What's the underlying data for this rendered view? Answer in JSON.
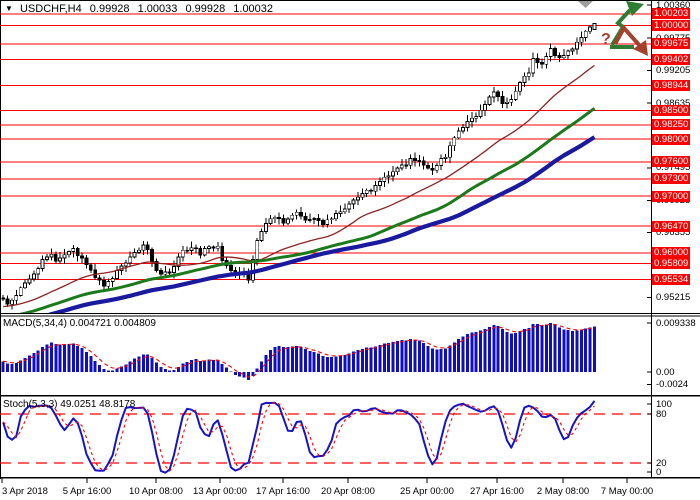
{
  "header": {
    "dropdown_icon": "▼",
    "symbol": "USDCHF,H4",
    "open": "0.99928",
    "high": "1.00033",
    "low": "0.99928",
    "close": "1.00032"
  },
  "colors": {
    "background": "#FFFFFF",
    "border": "#000000",
    "axis_text": "#000000",
    "level_line": "#FF0000",
    "level_label_bg": "#FF0000",
    "level_label_text": "#FFFFFF",
    "candle_up_fill": "#FFFFFF",
    "candle_down_fill": "#000000",
    "candle_outline": "#000000",
    "ma_fast": "#8E2323",
    "ma_mid": "#1C7A1C",
    "ma_slow": "#1A1A9E",
    "macd_bar": "#0F0FC0",
    "macd_signal": "#FF0000",
    "stoch_k": "#1414C8",
    "stoch_d": "#FF0000",
    "stoch_level": "#FF0000",
    "arrow_up": "#2E7D32",
    "arrow_down": "#A5402D",
    "marker_gray": "#9E9E9E"
  },
  "chart_data": [
    {
      "type": "candlestick",
      "symbol": "USDCHF",
      "timeframe": "H4",
      "title": "USDCHF,H4",
      "last_candle": {
        "open": 0.99928,
        "high": 1.00033,
        "low": 0.99928,
        "close": 1.00032
      },
      "y_range": [
        0.9496,
        1.00395
      ],
      "scale_ticks": [
        "1.00360",
        "0.99775",
        "0.99205",
        "0.98635",
        "0.97495",
        "0.96925",
        "0.96355",
        "0.95215"
      ],
      "level_lines": [
        "1.00203",
        "1.00000",
        "0.99675",
        "0.99402",
        "0.98944",
        "0.98500",
        "0.98250",
        "0.98000",
        "0.97600",
        "0.97300",
        "0.97000",
        "0.96470",
        "0.96000",
        "0.95809",
        "0.95534"
      ],
      "x_ticks": [
        {
          "label": "3 Apr 2018",
          "px": 2,
          "align": "left"
        },
        {
          "label": "5 Apr 16:00",
          "px": 87
        },
        {
          "label": "10 Apr 08:00",
          "px": 156
        },
        {
          "label": "13 Apr 00:00",
          "px": 220
        },
        {
          "label": "17 Apr 16:00",
          "px": 283
        },
        {
          "label": "20 Apr 08:00",
          "px": 348
        },
        {
          "label": "25 Apr 00:00",
          "px": 427
        },
        {
          "label": "27 Apr 16:00",
          "px": 497
        },
        {
          "label": "2 May 08:00",
          "px": 563
        },
        {
          "label": "7 May 00:00",
          "px": 627
        }
      ],
      "moving_averages": [
        {
          "name": "ma-fast",
          "color_key": "ma_fast",
          "period": 25,
          "width": 1.3
        },
        {
          "name": "ma-mid",
          "color_key": "ma_mid",
          "period": 50,
          "width": 3
        },
        {
          "name": "ma-slow",
          "color_key": "ma_slow",
          "period": 70,
          "width": 4.2
        }
      ],
      "candle_count": 136,
      "price_path_anchors": [
        [
          -70,
          0.9428
        ],
        [
          -40,
          0.9462
        ],
        [
          -20,
          0.9494
        ],
        [
          -8,
          0.9512
        ],
        [
          0,
          0.9522
        ],
        [
          1,
          0.9506
        ],
        [
          2,
          0.9516
        ],
        [
          3,
          0.9528
        ],
        [
          5,
          0.9549
        ],
        [
          8,
          0.9572
        ],
        [
          9,
          0.9588
        ],
        [
          11,
          0.9601
        ],
        [
          12,
          0.9586
        ],
        [
          14,
          0.9597
        ],
        [
          16,
          0.9605
        ],
        [
          18,
          0.9589
        ],
        [
          19,
          0.9577
        ],
        [
          21,
          0.9556
        ],
        [
          23,
          0.9541
        ],
        [
          24,
          0.9547
        ],
        [
          26,
          0.9566
        ],
        [
          28,
          0.9585
        ],
        [
          30,
          0.96
        ],
        [
          32,
          0.9612
        ],
        [
          33,
          0.9605
        ],
        [
          35,
          0.9572
        ],
        [
          36,
          0.956
        ],
        [
          38,
          0.9568
        ],
        [
          39,
          0.958
        ],
        [
          41,
          0.9602
        ],
        [
          43,
          0.961
        ],
        [
          45,
          0.96
        ],
        [
          47,
          0.9608
        ],
        [
          49,
          0.9615
        ],
        [
          50,
          0.959
        ],
        [
          52,
          0.957
        ],
        [
          53,
          0.9562
        ],
        [
          55,
          0.9568
        ],
        [
          56,
          0.955
        ],
        [
          57,
          0.959
        ],
        [
          58,
          0.9625
        ],
        [
          60,
          0.965
        ],
        [
          62,
          0.9665
        ],
        [
          64,
          0.9656
        ],
        [
          66,
          0.9663
        ],
        [
          67,
          0.9668
        ],
        [
          69,
          0.9655
        ],
        [
          71,
          0.9662
        ],
        [
          73,
          0.9652
        ],
        [
          75,
          0.9661
        ],
        [
          76,
          0.9671
        ],
        [
          78,
          0.9681
        ],
        [
          80,
          0.9691
        ],
        [
          82,
          0.9701
        ],
        [
          84,
          0.9712
        ],
        [
          86,
          0.9722
        ],
        [
          87,
          0.973
        ],
        [
          89,
          0.974
        ],
        [
          91,
          0.9752
        ],
        [
          93,
          0.9764
        ],
        [
          95,
          0.976
        ],
        [
          97,
          0.9748
        ],
        [
          98,
          0.9742
        ],
        [
          99,
          0.9754
        ],
        [
          101,
          0.9771
        ],
        [
          102,
          0.9789
        ],
        [
          103,
          0.9805
        ],
        [
          105,
          0.9818
        ],
        [
          106,
          0.9829
        ],
        [
          108,
          0.984
        ],
        [
          109,
          0.985
        ],
        [
          110,
          0.9862
        ],
        [
          112,
          0.988
        ],
        [
          113,
          0.9878
        ],
        [
          114,
          0.9861
        ],
        [
          116,
          0.9868
        ],
        [
          117,
          0.9884
        ],
        [
          118,
          0.99
        ],
        [
          120,
          0.9918
        ],
        [
          121,
          0.9938
        ],
        [
          123,
          0.9931
        ],
        [
          124,
          0.9945
        ],
        [
          125,
          0.9957
        ],
        [
          127,
          0.9943
        ],
        [
          129,
          0.9952
        ],
        [
          130,
          0.9962
        ],
        [
          131,
          0.9974
        ],
        [
          133,
          0.9988
        ],
        [
          134,
          1.0
        ],
        [
          135,
          1.0003
        ]
      ],
      "annotations": {
        "question_mark": "?",
        "up_arrow": "bullish-scenario",
        "down_arrow": "bearish-scenario"
      }
    },
    {
      "type": "bar",
      "name": "MACD",
      "label": "MACD(5,34,4) 0.004721 0.004809",
      "fast_period": 5,
      "slow_period": 34,
      "signal_period": 4,
      "current_macd": 0.004721,
      "current_signal": 0.004809,
      "axis_ticks": [
        "0.009338",
        "0.00",
        "-0.0024"
      ],
      "value_range": [
        -0.0024,
        0.009338
      ]
    },
    {
      "type": "line",
      "name": "Stochastic",
      "label": "Stoch(5,3,3) 49.0251 48.8178",
      "k_period": 5,
      "d_period": 3,
      "slowing": 3,
      "current_k": 49.0251,
      "current_d": 48.8178,
      "levels": [
        80,
        20
      ],
      "axis_ticks": [
        "100",
        "80",
        "20",
        "0"
      ],
      "value_range": [
        0,
        100
      ]
    }
  ]
}
